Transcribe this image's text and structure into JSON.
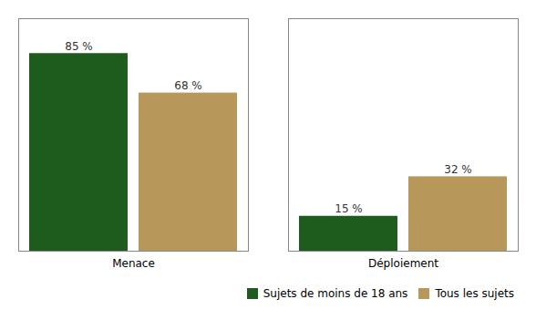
{
  "chart_data": {
    "type": "bar",
    "categories": [
      "Menace",
      "Déploiement"
    ],
    "series": [
      {
        "name": "Sujets de moins de 18 ans",
        "color": "#1e5c1e",
        "values": [
          85,
          15
        ],
        "value_labels": [
          "85 %",
          "15 %"
        ]
      },
      {
        "name": "Tous les sujets",
        "color": "#b8975a",
        "values": [
          68,
          32
        ],
        "value_labels": [
          "68 %",
          "32 %"
        ]
      }
    ],
    "ylim": [
      0,
      100
    ],
    "yticks": [],
    "tick_labels": "x",
    "data_labels": true,
    "legend": "lower right"
  }
}
